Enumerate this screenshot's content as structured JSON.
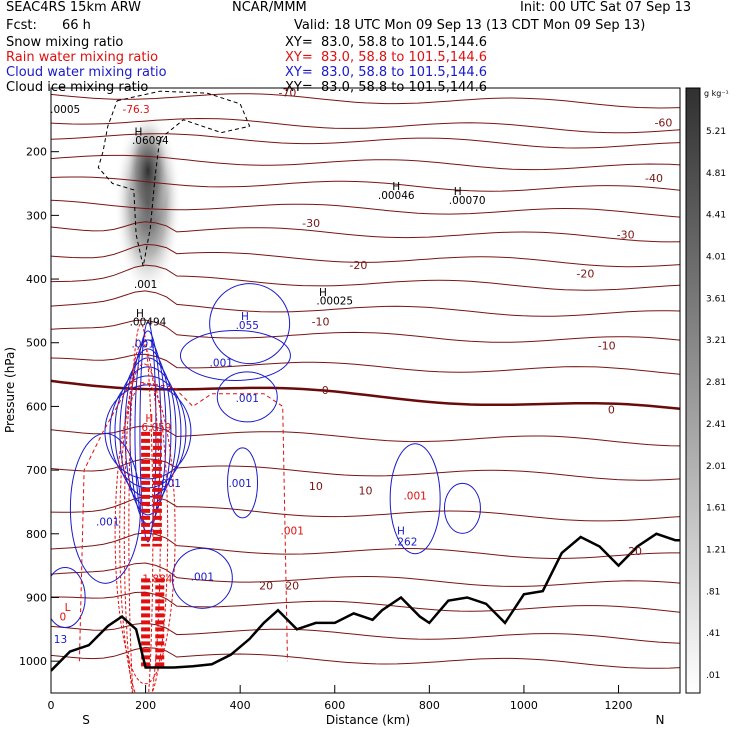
{
  "header": {
    "model": "SEAC4RS 15km ARW",
    "center": "NCAR/MMM",
    "init": "Init: 00 UTC Sat 07 Sep 13",
    "fcst_label": "Fcst:",
    "fcst_value": "66 h",
    "valid": "Valid: 18 UTC Mon 09 Sep 13 (13 CDT Mon 09 Sep 13)",
    "fields": [
      {
        "name": "Snow mixing ratio",
        "xy": "XY=  83.0, 58.8 to 101.5,144.6",
        "color": "#000000"
      },
      {
        "name": "Rain water mixing ratio",
        "xy": "XY=  83.0, 58.8 to 101.5,144.6",
        "color": "#e01010"
      },
      {
        "name": "Cloud water mixing ratio",
        "xy": "XY=  83.0, 58.8 to 101.5,144.6",
        "color": "#1a1acc"
      },
      {
        "name": "Cloud ice mixing ratio",
        "xy": "XY=  83.0, 58.8 to 101.5,144.6",
        "color": "#000000"
      }
    ]
  },
  "chart_data": {
    "type": "contour cross-section",
    "xlabel": "Distance (km)",
    "ylabel": "Pressure (hPa)",
    "x_ticks": [
      "0",
      "200",
      "400",
      "600",
      "800",
      "1000",
      "1200"
    ],
    "y_ticks": [
      "200",
      "300",
      "400",
      "500",
      "600",
      "700",
      "800",
      "900",
      "1000"
    ],
    "xlim": [
      0,
      1330
    ],
    "ylim_hpa": [
      1050,
      100
    ],
    "axis_ends": [
      "S",
      "N"
    ],
    "colorbar": {
      "unit": "g kg⁻¹",
      "labels": [
        "5.21",
        "4.81",
        "4.41",
        "4.01",
        "3.61",
        "3.21",
        "2.81",
        "2.41",
        "2.01",
        "1.61",
        "1.21",
        ".81",
        ".41",
        ".01"
      ]
    },
    "temperature_contours": [
      {
        "label": "-70",
        "x": 500,
        "p": 107
      },
      {
        "label": "-60",
        "x": 1295,
        "p": 154
      },
      {
        "label": "-40",
        "x": 1275,
        "p": 241
      },
      {
        "label": "-30",
        "x": 550,
        "p": 312
      },
      {
        "label": "-30",
        "x": 1215,
        "p": 330
      },
      {
        "label": "-20",
        "x": 650,
        "p": 378
      },
      {
        "label": "-20",
        "x": 1130,
        "p": 391
      },
      {
        "label": "-10",
        "x": 570,
        "p": 467
      },
      {
        "label": "-10",
        "x": 1175,
        "p": 504
      },
      {
        "label": "0",
        "x": 580,
        "p": 574
      },
      {
        "label": "0",
        "x": 1185,
        "p": 605
      },
      {
        "label": "10",
        "x": 560,
        "p": 725
      },
      {
        "label": "10",
        "x": 665,
        "p": 732
      },
      {
        "label": "20",
        "x": 455,
        "p": 881
      },
      {
        "label": "20",
        "x": 510,
        "p": 881
      },
      {
        "label": "20",
        "x": 1235,
        "p": 827
      }
    ],
    "extrema_labels": [
      {
        "text": ".0005",
        "x": 30,
        "p": 133,
        "color": "#000000"
      },
      {
        "text": "-76.3",
        "x": 180,
        "p": 133,
        "color": "#e01010"
      },
      {
        "text": "H",
        "x": 185,
        "p": 168,
        "color": "#000000"
      },
      {
        "text": ".06094",
        "x": 210,
        "p": 182,
        "color": "#000000"
      },
      {
        "text": "H",
        "x": 730,
        "p": 254,
        "color": "#000000"
      },
      {
        "text": ".00046",
        "x": 730,
        "p": 268,
        "color": "#000000"
      },
      {
        "text": "H",
        "x": 860,
        "p": 262,
        "color": "#000000"
      },
      {
        "text": ".00070",
        "x": 880,
        "p": 276,
        "color": "#000000"
      },
      {
        "text": ".001",
        "x": 200,
        "p": 408,
        "color": "#000000"
      },
      {
        "text": "H",
        "x": 575,
        "p": 420,
        "color": "#000000"
      },
      {
        "text": ".00025",
        "x": 600,
        "p": 434,
        "color": "#000000"
      },
      {
        "text": "H",
        "x": 188,
        "p": 453,
        "color": "#000000"
      },
      {
        "text": ".00494",
        "x": 205,
        "p": 467,
        "color": "#000000"
      },
      {
        "text": "H",
        "x": 410,
        "p": 458,
        "color": "#1a1acc"
      },
      {
        "text": ".055",
        "x": 415,
        "p": 472,
        "color": "#1a1acc"
      },
      {
        "text": ".001",
        "x": 195,
        "p": 501,
        "color": "#1a1acc"
      },
      {
        "text": ".001",
        "x": 360,
        "p": 531,
        "color": "#1a1acc"
      },
      {
        "text": ".001",
        "x": 415,
        "p": 587,
        "color": "#1a1acc"
      },
      {
        "text": "H",
        "x": 208,
        "p": 618,
        "color": "#e01010"
      },
      {
        "text": "6.059",
        "x": 223,
        "p": 632,
        "color": "#e01010"
      },
      {
        "text": ".001",
        "x": 250,
        "p": 720,
        "color": "#1a1acc"
      },
      {
        "text": ".001",
        "x": 400,
        "p": 720,
        "color": "#1a1acc"
      },
      {
        "text": ".001",
        "x": 120,
        "p": 781,
        "color": "#1a1acc"
      },
      {
        "text": ".001",
        "x": 770,
        "p": 740,
        "color": "#e01010"
      },
      {
        "text": ".001",
        "x": 510,
        "p": 795,
        "color": "#e01010"
      },
      {
        "text": "H",
        "x": 740,
        "p": 795,
        "color": "#1a1acc"
      },
      {
        "text": ".262",
        "x": 750,
        "p": 812,
        "color": "#1a1acc"
      },
      {
        "text": ".001",
        "x": 320,
        "p": 867,
        "color": "#1a1acc"
      },
      {
        "text": "1.884",
        "x": 225,
        "p": 870,
        "color": "#e01010"
      },
      {
        "text": "L",
        "x": 35,
        "p": 915,
        "color": "#e01010"
      },
      {
        "text": "0",
        "x": 25,
        "p": 930,
        "color": "#e01010"
      },
      {
        "text": "13",
        "x": 20,
        "p": 965,
        "color": "#1a1acc"
      }
    ],
    "terrain_profile_hpa": {
      "x": [
        0,
        40,
        80,
        120,
        150,
        180,
        200,
        260,
        300,
        340,
        380,
        420,
        450,
        480,
        520,
        560,
        600,
        640,
        680,
        700,
        740,
        780,
        800,
        840,
        880,
        920,
        960,
        1000,
        1040,
        1080,
        1120,
        1160,
        1200,
        1240,
        1280,
        1320,
        1330
      ],
      "p": [
        1015,
        985,
        975,
        945,
        930,
        950,
        1010,
        1010,
        1008,
        1005,
        990,
        965,
        940,
        920,
        950,
        940,
        940,
        925,
        935,
        920,
        900,
        930,
        940,
        905,
        900,
        910,
        940,
        895,
        890,
        830,
        805,
        820,
        850,
        820,
        800,
        810,
        810
      ]
    }
  }
}
